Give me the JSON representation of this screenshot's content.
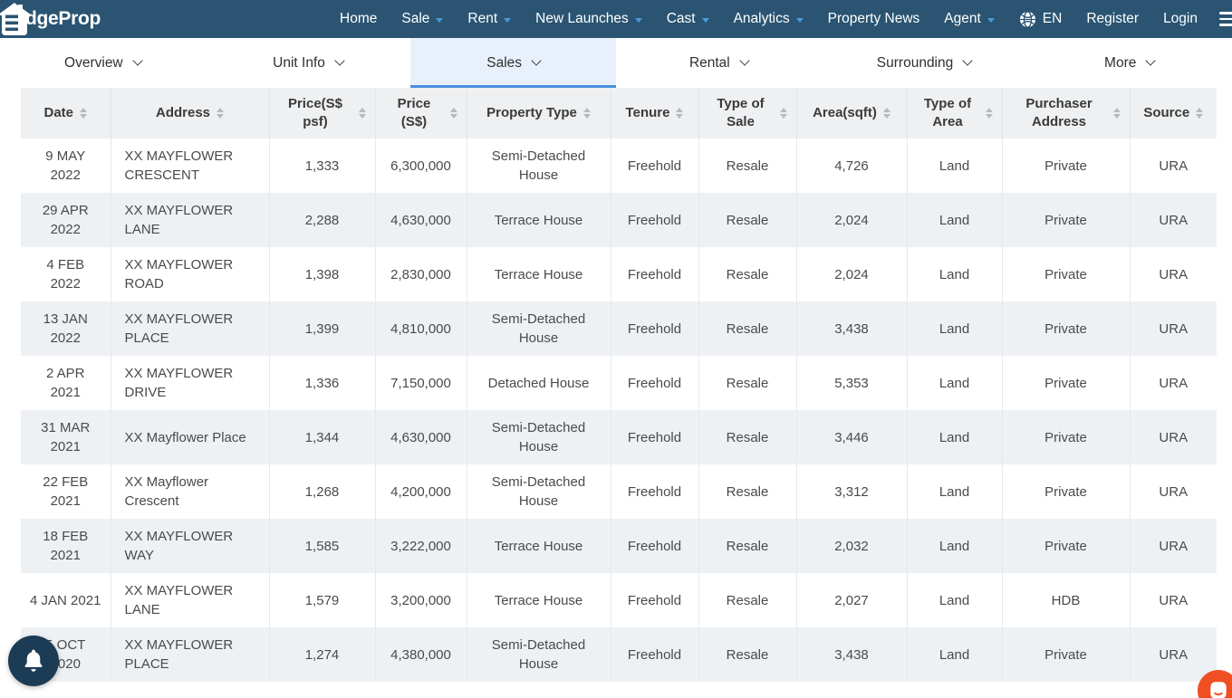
{
  "nav": {
    "logo_text": "dgeProp",
    "items": [
      {
        "label": "Home",
        "dropdown": false
      },
      {
        "label": "Sale",
        "dropdown": true
      },
      {
        "label": "Rent",
        "dropdown": true
      },
      {
        "label": "New Launches",
        "dropdown": true
      },
      {
        "label": "Cast",
        "dropdown": true
      },
      {
        "label": "Analytics",
        "dropdown": true
      },
      {
        "label": "Property News",
        "dropdown": false
      },
      {
        "label": "Agent",
        "dropdown": true
      }
    ],
    "language": "EN",
    "register_label": "Register",
    "login_label": "Login"
  },
  "tabs": {
    "items": [
      {
        "label": "Overview",
        "active": false
      },
      {
        "label": "Unit Info",
        "active": false
      },
      {
        "label": "Sales",
        "active": true
      },
      {
        "label": "Rental",
        "active": false
      },
      {
        "label": "Surrounding",
        "active": false
      },
      {
        "label": "More",
        "active": false
      }
    ]
  },
  "table": {
    "columns": [
      "Date",
      "Address",
      "Price(S$ psf)",
      "Price (S$)",
      "Property Type",
      "Tenure",
      "Type of Sale",
      "Area(sqft)",
      "Type of Area",
      "Purchaser Address",
      "Source"
    ],
    "rows": [
      [
        "9 MAY 2022",
        "XX MAYFLOWER CRESCENT",
        "1,333",
        "6,300,000",
        "Semi-Detached House",
        "Freehold",
        "Resale",
        "4,726",
        "Land",
        "Private",
        "URA"
      ],
      [
        "29 APR 2022",
        "XX MAYFLOWER LANE",
        "2,288",
        "4,630,000",
        "Terrace House",
        "Freehold",
        "Resale",
        "2,024",
        "Land",
        "Private",
        "URA"
      ],
      [
        "4 FEB 2022",
        "XX MAYFLOWER ROAD",
        "1,398",
        "2,830,000",
        "Terrace House",
        "Freehold",
        "Resale",
        "2,024",
        "Land",
        "Private",
        "URA"
      ],
      [
        "13 JAN 2022",
        "XX MAYFLOWER PLACE",
        "1,399",
        "4,810,000",
        "Semi-Detached House",
        "Freehold",
        "Resale",
        "3,438",
        "Land",
        "Private",
        "URA"
      ],
      [
        "2 APR 2021",
        "XX MAYFLOWER DRIVE",
        "1,336",
        "7,150,000",
        "Detached House",
        "Freehold",
        "Resale",
        "5,353",
        "Land",
        "Private",
        "URA"
      ],
      [
        "31 MAR 2021",
        "XX Mayflower Place",
        "1,344",
        "4,630,000",
        "Semi-Detached House",
        "Freehold",
        "Resale",
        "3,446",
        "Land",
        "Private",
        "URA"
      ],
      [
        "22 FEB 2021",
        "XX Mayflower Crescent",
        "1,268",
        "4,200,000",
        "Semi-Detached House",
        "Freehold",
        "Resale",
        "3,312",
        "Land",
        "Private",
        "URA"
      ],
      [
        "18 FEB 2021",
        "XX MAYFLOWER WAY",
        "1,585",
        "3,222,000",
        "Terrace House",
        "Freehold",
        "Resale",
        "2,032",
        "Land",
        "Private",
        "URA"
      ],
      [
        "4 JAN 2021",
        "XX MAYFLOWER LANE",
        "1,579",
        "3,200,000",
        "Terrace House",
        "Freehold",
        "Resale",
        "2,027",
        "Land",
        "HDB",
        "URA"
      ],
      [
        "5 OCT 2020",
        "XX MAYFLOWER PLACE",
        "1,274",
        "4,380,000",
        "Semi-Detached House",
        "Freehold",
        "Resale",
        "3,438",
        "Land",
        "Private",
        "URA"
      ]
    ]
  },
  "icons": {
    "logo": "edgeprop-house-icon",
    "globe": "globe-icon",
    "menu": "hamburger-menu-icon",
    "bell": "notification-bell-icon",
    "chat": "chat-messenger-icon",
    "sort": "sort-arrows-icon"
  },
  "colors": {
    "nav_background": "#2A5472",
    "nav_caret": "#4A9BDC",
    "active_tab_background": "#E8F1FB",
    "active_tab_border": "#4A90E2",
    "table_header_background": "#EEF0F2",
    "row_stripe": "#EEF1F4",
    "bell_background": "#1C3B54",
    "chat_background": "#F04F24"
  }
}
